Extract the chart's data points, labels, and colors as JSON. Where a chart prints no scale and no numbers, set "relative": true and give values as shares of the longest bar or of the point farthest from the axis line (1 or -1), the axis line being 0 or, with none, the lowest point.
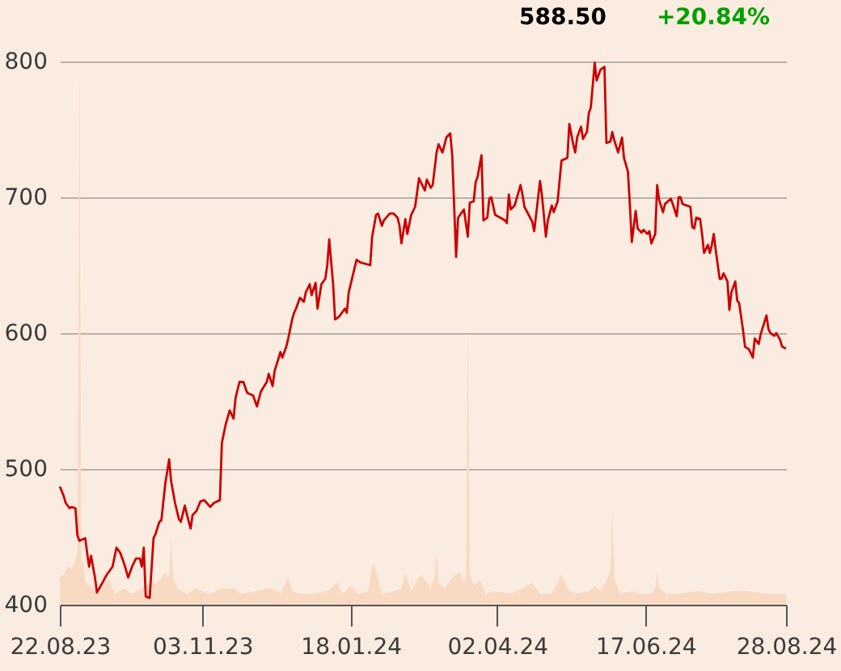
{
  "chart_data": [
    {
      "type": "line",
      "annotations": [
        "588.50",
        "+20.84%"
      ],
      "color": "#cc0000",
      "x": [
        "2023-08-22",
        "2023-08-24",
        "2023-08-25",
        "2023-08-27",
        "2023-08-28",
        "2023-08-30",
        "2023-08-31",
        "2023-09-01",
        "2023-09-04",
        "2023-09-05",
        "2023-09-06",
        "2023-09-07",
        "2023-09-09",
        "2023-09-10",
        "2023-09-12",
        "2023-09-15",
        "2023-09-18",
        "2023-09-20",
        "2023-09-22",
        "2023-09-24",
        "2023-09-26",
        "2023-09-28",
        "2023-09-30",
        "2023-10-02",
        "2023-10-03",
        "2023-10-04",
        "2023-10-05",
        "2023-10-07",
        "2023-10-09",
        "2023-10-10",
        "2023-10-12",
        "2023-10-13",
        "2023-10-15",
        "2023-10-17",
        "2023-10-18",
        "2023-10-20",
        "2023-10-22",
        "2023-10-23",
        "2023-10-25",
        "2023-10-26",
        "2023-10-28",
        "2023-10-29",
        "2023-10-31",
        "2023-11-02",
        "2023-11-04",
        "2023-11-07",
        "2023-11-09",
        "2023-11-12",
        "2023-11-13",
        "2023-11-15",
        "2023-11-17",
        "2023-11-19",
        "2023-11-20",
        "2023-11-22",
        "2023-11-24",
        "2023-11-26",
        "2023-11-29",
        "2023-12-01",
        "2023-12-03",
        "2023-12-06",
        "2023-12-07",
        "2023-12-09",
        "2023-12-10",
        "2023-12-13",
        "2023-12-14",
        "2023-12-16",
        "2023-12-17",
        "2023-12-19",
        "2023-12-20",
        "2023-12-21",
        "2023-12-23",
        "2023-12-25",
        "2023-12-26",
        "2023-12-28",
        "2023-12-29",
        "2023-12-31",
        "2024-01-01",
        "2024-01-03",
        "2024-01-05",
        "2024-01-06",
        "2024-01-07",
        "2024-01-09",
        "2024-01-10",
        "2024-01-12",
        "2024-01-15",
        "2024-01-16",
        "2024-01-17",
        "2024-01-20",
        "2024-01-21",
        "2024-01-23",
        "2024-01-28",
        "2024-01-29",
        "2024-01-31",
        "2024-02-01",
        "2024-02-03",
        "2024-02-04",
        "2024-02-07",
        "2024-02-09",
        "2024-02-11",
        "2024-02-12",
        "2024-02-13",
        "2024-02-15",
        "2024-02-16",
        "2024-02-18",
        "2024-02-20",
        "2024-02-22",
        "2024-02-25",
        "2024-02-26",
        "2024-02-28",
        "2024-02-29",
        "2024-03-02",
        "2024-03-03",
        "2024-03-05",
        "2024-03-07",
        "2024-03-09",
        "2024-03-10",
        "2024-03-12",
        "2024-03-13",
        "2024-03-16",
        "2024-03-18",
        "2024-03-19",
        "2024-03-21",
        "2024-03-22",
        "2024-03-23",
        "2024-03-25",
        "2024-03-26",
        "2024-03-28",
        "2024-03-29",
        "2024-03-30",
        "2024-04-01",
        "2024-04-06",
        "2024-04-07",
        "2024-04-08",
        "2024-04-09",
        "2024-04-11",
        "2024-04-14",
        "2024-04-15",
        "2024-04-16",
        "2024-04-20",
        "2024-04-21",
        "2024-04-24",
        "2024-04-25",
        "2024-04-27",
        "2024-04-28",
        "2024-04-30",
        "2024-05-01",
        "2024-05-03",
        "2024-05-05",
        "2024-05-08",
        "2024-05-09",
        "2024-05-11",
        "2024-05-12",
        "2024-05-13",
        "2024-05-15",
        "2024-05-16",
        "2024-05-18",
        "2024-05-19",
        "2024-05-20",
        "2024-05-22",
        "2024-05-23",
        "2024-05-25",
        "2024-05-27",
        "2024-05-28",
        "2024-05-30",
        "2024-05-31",
        "2024-06-01",
        "2024-06-03",
        "2024-06-05",
        "2024-06-06",
        "2024-06-08",
        "2024-06-09",
        "2024-06-10",
        "2024-06-12",
        "2024-06-13",
        "2024-06-15",
        "2024-06-16",
        "2024-06-18",
        "2024-06-19",
        "2024-06-20",
        "2024-06-22",
        "2024-06-23",
        "2024-06-24",
        "2024-06-26",
        "2024-06-27",
        "2024-06-30",
        "2024-07-01",
        "2024-07-03",
        "2024-07-04",
        "2024-07-05",
        "2024-07-06",
        "2024-07-10",
        "2024-07-11",
        "2024-07-12",
        "2024-07-13",
        "2024-07-15",
        "2024-07-16",
        "2024-07-17",
        "2024-07-19",
        "2024-07-20",
        "2024-07-21",
        "2024-07-22",
        "2024-07-23",
        "2024-07-25",
        "2024-07-26",
        "2024-07-27",
        "2024-07-29",
        "2024-07-30",
        "2024-07-31",
        "2024-08-02",
        "2024-08-03",
        "2024-08-04",
        "2024-08-06",
        "2024-08-07",
        "2024-08-09",
        "2024-08-11",
        "2024-08-12",
        "2024-08-14",
        "2024-08-15",
        "2024-08-18",
        "2024-08-19",
        "2024-08-20",
        "2024-08-22",
        "2024-08-23",
        "2024-08-25",
        "2024-08-26",
        "2024-08-28"
      ],
      "values": [
        487,
        480,
        475,
        471,
        472,
        471,
        451,
        447,
        449,
        438,
        428,
        436,
        420,
        409,
        414,
        422,
        428,
        442,
        438,
        430,
        420,
        428,
        434,
        434,
        428,
        442,
        406,
        405,
        449,
        452,
        461,
        462,
        489,
        507,
        491,
        475,
        463,
        461,
        473,
        467,
        456,
        466,
        469,
        476,
        477,
        472,
        475,
        477,
        519,
        533,
        543,
        537,
        552,
        564,
        564,
        556,
        554,
        546,
        557,
        564,
        570,
        561,
        572,
        586,
        582,
        590,
        596,
        610,
        615,
        618,
        626,
        623,
        630,
        636,
        628,
        637,
        618,
        636,
        640,
        650,
        669,
        636,
        610,
        612,
        618,
        615,
        630,
        648,
        654,
        652,
        650,
        671,
        687,
        688,
        679,
        683,
        688,
        688,
        685,
        679,
        666,
        684,
        673,
        687,
        693,
        714,
        705,
        713,
        707,
        709,
        733,
        739,
        733,
        744,
        747,
        731,
        656,
        685,
        691,
        671,
        696,
        697,
        711,
        715,
        731,
        683,
        685,
        699,
        700,
        687,
        683,
        681,
        702,
        691,
        694,
        709,
        702,
        693,
        682,
        675,
        712,
        701,
        671,
        683,
        694,
        689,
        697,
        727,
        729,
        754,
        739,
        733,
        744,
        752,
        743,
        748,
        762,
        766,
        799,
        786,
        794,
        796,
        740,
        741,
        748,
        742,
        733,
        744,
        729,
        719,
        695,
        667,
        690,
        677,
        674,
        676,
        673,
        675,
        666,
        673,
        709,
        698,
        689,
        695,
        699,
        695,
        686,
        700,
        700,
        695,
        693,
        678,
        677,
        685,
        684,
        673,
        659,
        665,
        659,
        665,
        673,
        661,
        640,
        640,
        644,
        638,
        617,
        630,
        638,
        624,
        622,
        602,
        590,
        588,
        582,
        596,
        592,
        599,
        613,
        603,
        600,
        598,
        600,
        595,
        590,
        588.5
      ],
      "xlim": [
        "2023-08-22",
        "2024-08-28"
      ],
      "xticks": [
        {
          "value": "2023-08-22",
          "label": "22.08.23"
        },
        {
          "value": "2023-11-03",
          "label": "03.11.23"
        },
        {
          "value": "2024-01-18",
          "label": "18.01.24"
        },
        {
          "value": "2024-04-02",
          "label": "02.04.24"
        },
        {
          "value": "2024-06-17",
          "label": "17.06.24"
        },
        {
          "value": "2024-08-28",
          "label": "28.08.24"
        }
      ],
      "ylim": [
        400,
        800
      ],
      "yticks": [
        400,
        500,
        600,
        700,
        800
      ],
      "grid": "y"
    },
    {
      "type": "area",
      "relative": true,
      "color": "#f8dac3",
      "tick_labels": false,
      "xlim": [
        "2023-08-22",
        "2024-08-28"
      ],
      "x": [
        "2023-08-22",
        "2023-08-24",
        "2023-08-26",
        "2023-08-28",
        "2023-08-30",
        "2023-08-31",
        "2023-09-01",
        "2023-09-02",
        "2023-09-03",
        "2023-09-04",
        "2023-09-08",
        "2023-09-11",
        "2023-09-14",
        "2023-09-16",
        "2023-09-19",
        "2023-09-24",
        "2023-09-28",
        "2023-10-03",
        "2023-10-07",
        "2023-10-11",
        "2023-10-15",
        "2023-10-17",
        "2023-10-18",
        "2023-10-19",
        "2023-10-21",
        "2023-10-26",
        "2023-10-31",
        "2023-11-06",
        "2023-11-13",
        "2023-11-19",
        "2023-11-23",
        "2023-11-30",
        "2023-12-08",
        "2023-12-13",
        "2023-12-17",
        "2023-12-19",
        "2023-12-23",
        "2023-12-30",
        "2024-01-06",
        "2024-01-11",
        "2024-01-14",
        "2024-01-18",
        "2024-01-22",
        "2024-01-27",
        "2024-01-29",
        "2024-01-30",
        "2024-01-31",
        "2024-02-03",
        "2024-02-09",
        "2024-02-13",
        "2024-02-15",
        "2024-02-18",
        "2024-02-21",
        "2024-02-23",
        "2024-02-26",
        "2024-02-28",
        "2024-03-01",
        "2024-03-02",
        "2024-03-03",
        "2024-03-06",
        "2024-03-10",
        "2024-03-14",
        "2024-03-16",
        "2024-03-17",
        "2024-03-18",
        "2024-03-19",
        "2024-03-21",
        "2024-03-24",
        "2024-03-27",
        "2024-04-01",
        "2024-04-09",
        "2024-04-15",
        "2024-04-20",
        "2024-04-24",
        "2024-04-30",
        "2024-05-05",
        "2024-05-08",
        "2024-05-12",
        "2024-05-19",
        "2024-05-22",
        "2024-05-25",
        "2024-05-28",
        "2024-05-30",
        "2024-05-31",
        "2024-06-01",
        "2024-06-04",
        "2024-06-10",
        "2024-06-15",
        "2024-06-20",
        "2024-06-22",
        "2024-06-23",
        "2024-06-24",
        "2024-06-28",
        "2024-07-04",
        "2024-07-14",
        "2024-07-22",
        "2024-07-31",
        "2024-08-09",
        "2024-08-17",
        "2024-08-28"
      ],
      "values": [
        0.05,
        0.055,
        0.07,
        0.065,
        0.08,
        0.1,
        1,
        0.08,
        0.08,
        0.04,
        0.03,
        0.02,
        0.04,
        0.05,
        0.02,
        0.03,
        0.02,
        0.03,
        0.04,
        0.04,
        0.06,
        0.05,
        0.12,
        0.05,
        0.03,
        0.02,
        0.03,
        0.02,
        0.03,
        0.03,
        0.02,
        0.025,
        0.03,
        0.02,
        0.05,
        0.025,
        0.02,
        0.02,
        0.025,
        0.04,
        0.02,
        0.035,
        0.02,
        0.025,
        0.07,
        0.075,
        0.06,
        0.02,
        0.025,
        0.03,
        0.06,
        0.025,
        0.045,
        0.055,
        0.04,
        0.03,
        0.05,
        0.1,
        0.04,
        0.03,
        0.05,
        0.06,
        0.04,
        0.05,
        0.51,
        0.06,
        0.035,
        0.045,
        0.02,
        0.025,
        0.02,
        0.03,
        0.04,
        0.02,
        0.02,
        0.055,
        0.03,
        0.02,
        0.025,
        0.035,
        0.025,
        0.045,
        0.06,
        0.18,
        0.05,
        0.02,
        0.025,
        0.02,
        0.02,
        0.03,
        0.06,
        0.03,
        0.02,
        0.02,
        0.025,
        0.02,
        0.025,
        0.025,
        0.02,
        0.02
      ]
    }
  ]
}
